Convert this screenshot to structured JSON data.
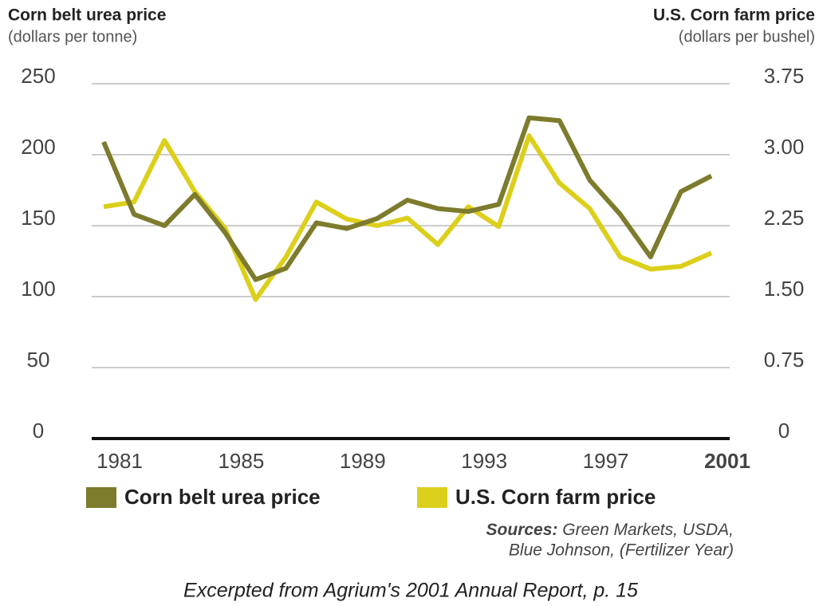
{
  "chart_data": {
    "type": "line",
    "y_title": "Corn belt urea price",
    "y_subtitle": "(dollars per tonne)",
    "y2_title": "U.S. Corn farm price",
    "y2_subtitle": "(dollars per bushel)",
    "x": [
      1981,
      1982,
      1983,
      1984,
      1985,
      1986,
      1987,
      1988,
      1989,
      1990,
      1991,
      1992,
      1993,
      1994,
      1995,
      1996,
      1997,
      1998,
      1999,
      2000,
      2001
    ],
    "xlim": [
      1981,
      2001
    ],
    "xticks": [
      1981,
      1985,
      1989,
      1993,
      1997,
      2001
    ],
    "ylim": [
      0,
      250
    ],
    "yticks": [
      0,
      50,
      100,
      150,
      200,
      250
    ],
    "y2lim": [
      0,
      3.75
    ],
    "y2ticks": [
      0,
      0.75,
      {
        "value": 1.5,
        "label": "1.50"
      },
      2.25,
      {
        "value": 3,
        "label": "3.00"
      },
      3.75
    ],
    "grid": true,
    "series": [
      {
        "name": "Corn belt urea price",
        "color": "#7d7b2c",
        "values": [
          209,
          158,
          150,
          172,
          145,
          112,
          120,
          152,
          148,
          155,
          168,
          162,
          160,
          165,
          226,
          224,
          182,
          158,
          128,
          174,
          185
        ]
      },
      {
        "name": "U.S. Corn farm price",
        "color": "#dccf1c",
        "axis": "y2",
        "values": [
          2.45,
          2.5,
          3.15,
          2.61,
          2.22,
          1.47,
          1.92,
          2.5,
          2.32,
          2.25,
          2.33,
          2.05,
          2.45,
          2.24,
          3.2,
          2.7,
          2.43,
          1.92,
          1.79,
          1.82,
          1.96
        ]
      }
    ],
    "sources_label": "Sources:",
    "sources": [
      "Green Markets, USDA,",
      "Blue Johnson, (Fertilizer Year)"
    ],
    "footer": "Excerpted from Agrium's 2001 Annual Report, p. 15"
  }
}
